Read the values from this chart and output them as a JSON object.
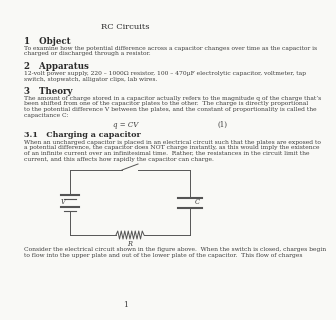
{
  "title": "RC Circuits",
  "section1_header": "1   Object",
  "section1_body1": "To examine how the potential difference across a capacitor changes over time as the capacitor is",
  "section1_body2": "charged or discharged through a resistor.",
  "section2_header": "2   Apparatus",
  "section2_body1": "12-volt power supply, 220 – 1000Ω resistor, 100 – 470µF electrolytic capacitor, voltmeter, tap",
  "section2_body2": "switch, stopwatch, alligator clips, lab wires.",
  "section3_header": "3   Theory",
  "section3_body1": "The amount of charge stored in a capacitor actually refers to the magnitude q of the charge that’s",
  "section3_body2": "been shifted from one of the capacitor plates to the other.  The charge is directly proportional",
  "section3_body3": "to the potential difference V between the plates, and the constant of proportionality is called the",
  "section3_body4": "capacitance C:",
  "equation": "q = CV",
  "equation_number": "(1)",
  "section31_header": "3.1   Charging a capacitor",
  "section31_body1": "When an uncharged capacitor is placed in an electrical circuit such that the plates are exposed to",
  "section31_body2": "a potential difference, the capacitor does NOT charge instantly, as this would imply the existence",
  "section31_body3": "of an infinite current over an infinitesimal time.  Rather, the resistances in the circuit limit the",
  "section31_body4": "current, and this affects how rapidly the capacitor can charge.",
  "caption1": "Consider the electrical circuit shown in the figure above.  When the switch is closed, charges begin",
  "caption2": "to flow into the upper plate and out of the lower plate of the capacitor.  This flow of charges",
  "page_number": "1",
  "bg_color": "#f9f9f6",
  "text_color": "#2a2a2a",
  "body_color": "#3a3a3a"
}
